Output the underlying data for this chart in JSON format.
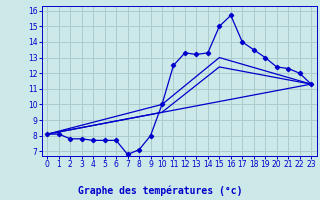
{
  "xlabel": "Graphe des températures (°c)",
  "bg_color": "#cce8e8",
  "grid_color": "#aacccc",
  "line_color": "#0000cc",
  "label_color": "#0000cc",
  "xmin": 0,
  "xmax": 23,
  "ymin": 7,
  "ymax": 16,
  "xticks": [
    0,
    1,
    2,
    3,
    4,
    5,
    6,
    7,
    8,
    9,
    10,
    11,
    12,
    13,
    14,
    15,
    16,
    17,
    18,
    19,
    20,
    21,
    22,
    23
  ],
  "yticks": [
    7,
    8,
    9,
    10,
    11,
    12,
    13,
    14,
    15,
    16
  ],
  "line1_x": [
    0,
    1,
    2,
    3,
    4,
    5,
    6,
    7,
    8,
    9,
    10,
    11,
    12,
    13,
    14,
    15,
    16,
    17,
    18,
    19,
    20,
    21,
    22,
    23
  ],
  "line1_y": [
    8.1,
    8.1,
    7.8,
    7.8,
    7.7,
    7.7,
    7.7,
    6.8,
    7.1,
    8.0,
    10.0,
    12.5,
    13.3,
    13.2,
    13.3,
    15.0,
    15.7,
    14.0,
    13.5,
    13.0,
    12.4,
    12.3,
    12.0,
    11.3
  ],
  "line2_x": [
    0,
    23
  ],
  "line2_y": [
    8.1,
    11.3
  ],
  "line3_x": [
    0,
    10,
    15,
    23
  ],
  "line3_y": [
    8.1,
    10.0,
    13.0,
    11.3
  ],
  "line4_x": [
    0,
    10,
    15,
    23
  ],
  "line4_y": [
    8.1,
    9.5,
    12.4,
    11.3
  ],
  "tick_fontsize": 5.5,
  "xlabel_fontsize": 7.0
}
